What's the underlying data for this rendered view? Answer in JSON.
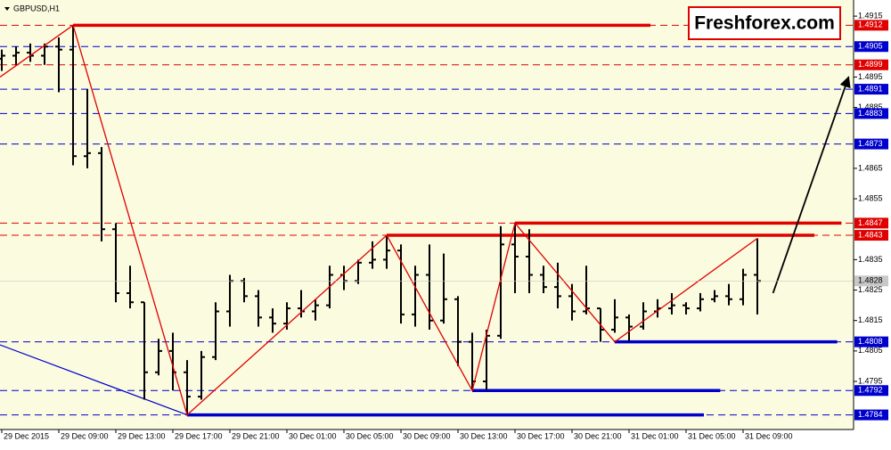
{
  "chart_data": {
    "type": "ohlc",
    "title": "GBPUSD,H1",
    "logo": "Freshforex.com",
    "background": "#fbfbdf",
    "bar_color": "#000000",
    "open": [
      1.4901,
      1.4902,
      1.4903,
      1.4902,
      1.4905,
      1.4904,
      1.4869,
      1.487,
      1.4845,
      1.4824,
      1.4821,
      1.4798,
      1.4805,
      1.4798,
      1.479,
      1.4803,
      1.4818,
      1.4828,
      1.4823,
      1.4816,
      1.4814,
      1.4819,
      1.4818,
      1.482,
      1.483,
      1.4828,
      1.4834,
      1.4835,
      1.4838,
      1.4817,
      1.483,
      1.4815,
      1.4822,
      1.4808,
      1.4795,
      1.481,
      1.484,
      1.4836,
      1.483,
      1.4826,
      1.4823,
      1.4818,
      1.4819,
      1.4812,
      1.4816,
      1.4813,
      1.4818,
      1.4819,
      1.482,
      1.4819,
      1.4822,
      1.4823,
      1.4822,
      1.483
    ],
    "high": [
      1.4904,
      1.4905,
      1.4906,
      1.4906,
      1.4908,
      1.4912,
      1.4891,
      1.4872,
      1.4847,
      1.4833,
      1.4821,
      1.4809,
      1.4811,
      1.4802,
      1.4805,
      1.4821,
      1.483,
      1.4829,
      1.4825,
      1.4819,
      1.4821,
      1.4825,
      1.4822,
      1.4833,
      1.4833,
      1.4835,
      1.4841,
      1.4843,
      1.484,
      1.4833,
      1.484,
      1.4837,
      1.4823,
      1.4811,
      1.4812,
      1.4846,
      1.4847,
      1.4845,
      1.4833,
      1.4834,
      1.4827,
      1.4833,
      1.4819,
      1.4822,
      1.4817,
      1.4821,
      1.4822,
      1.4824,
      1.4821,
      1.4824,
      1.4825,
      1.4827,
      1.4832,
      1.4842
    ],
    "low": [
      1.4897,
      1.4899,
      1.49,
      1.4899,
      1.489,
      1.4866,
      1.4865,
      1.4841,
      1.4821,
      1.4819,
      1.4789,
      1.4797,
      1.4792,
      1.4784,
      1.4789,
      1.4802,
      1.4813,
      1.4821,
      1.4813,
      1.4811,
      1.4812,
      1.4816,
      1.4815,
      1.4819,
      1.4825,
      1.4827,
      1.4832,
      1.4832,
      1.4814,
      1.4813,
      1.4812,
      1.4814,
      1.48,
      1.4792,
      1.4792,
      1.4809,
      1.4824,
      1.4824,
      1.4824,
      1.4819,
      1.4815,
      1.4817,
      1.4808,
      1.4811,
      1.4808,
      1.4812,
      1.4816,
      1.4817,
      1.4817,
      1.4818,
      1.4821,
      1.482,
      1.482,
      1.4817
    ],
    "close": [
      1.4902,
      1.4903,
      1.4902,
      1.4905,
      1.4904,
      1.4869,
      1.487,
      1.4845,
      1.4824,
      1.4821,
      1.4798,
      1.4805,
      1.4798,
      1.479,
      1.4803,
      1.4818,
      1.4828,
      1.4823,
      1.4816,
      1.4814,
      1.4819,
      1.4818,
      1.482,
      1.483,
      1.4828,
      1.4834,
      1.4835,
      1.4838,
      1.4817,
      1.483,
      1.4815,
      1.4822,
      1.4808,
      1.4795,
      1.481,
      1.484,
      1.4836,
      1.483,
      1.4826,
      1.4823,
      1.4818,
      1.4819,
      1.4812,
      1.4816,
      1.4813,
      1.4818,
      1.4819,
      1.482,
      1.4819,
      1.4822,
      1.4823,
      1.4822,
      1.483,
      1.4828
    ],
    "xlim": [
      -0.125,
      59.75
    ],
    "ylim": [
      1.47792,
      1.49203
    ],
    "xticks": [
      {
        "value": 0,
        "label": "29 Dec 2015"
      },
      {
        "value": 4,
        "label": "29 Dec 09:00"
      },
      {
        "value": 8,
        "label": "29 Dec 13:00"
      },
      {
        "value": 12,
        "label": "29 Dec 17:00"
      },
      {
        "value": 16,
        "label": "29 Dec 21:00"
      },
      {
        "value": 20,
        "label": "30 Dec 01:00"
      },
      {
        "value": 24,
        "label": "30 Dec 05:00"
      },
      {
        "value": 28,
        "label": "30 Dec 09:00"
      },
      {
        "value": 32,
        "label": "30 Dec 13:00"
      },
      {
        "value": 36,
        "label": "30 Dec 17:00"
      },
      {
        "value": 40,
        "label": "30 Dec 21:00"
      },
      {
        "value": 44,
        "label": "31 Dec 01:00"
      },
      {
        "value": 48,
        "label": "31 Dec 05:00"
      },
      {
        "value": 52,
        "label": "31 Dec 09:00"
      }
    ],
    "yticks": [
      1.4915,
      1.4895,
      1.4885,
      1.4865,
      1.4855,
      1.4835,
      1.4825,
      1.4815,
      1.4805,
      1.4795
    ],
    "levels": [
      {
        "value": 1.4912,
        "color": "#e00000"
      },
      {
        "value": 1.4905,
        "color": "#0000cc"
      },
      {
        "value": 1.4899,
        "color": "#e00000"
      },
      {
        "value": 1.4891,
        "color": "#0000cc"
      },
      {
        "value": 1.4883,
        "color": "#0000cc"
      },
      {
        "value": 1.4873,
        "color": "#0000cc"
      },
      {
        "value": 1.4847,
        "color": "#e00000"
      },
      {
        "value": 1.4843,
        "color": "#e00000"
      },
      {
        "value": 1.4808,
        "color": "#0000cc"
      },
      {
        "value": 1.4792,
        "color": "#0000cc"
      },
      {
        "value": 1.4784,
        "color": "#0000cc"
      }
    ],
    "current_price": 1.4828,
    "zigzag": {
      "color": "#e00000",
      "x": [
        -0.125,
        5,
        13,
        27,
        33,
        36,
        43,
        53
      ],
      "y": [
        1.4895,
        1.4912,
        1.4784,
        1.4843,
        1.4792,
        1.4847,
        1.4808,
        1.4842
      ]
    },
    "trendline": {
      "color": "#0000cc",
      "x": [
        -0.125,
        13
      ],
      "y": [
        1.4807,
        1.4784
      ]
    },
    "segments": [
      {
        "color": "#e00000",
        "x": [
          5,
          45.5
        ],
        "y": 1.4912
      },
      {
        "color": "#e00000",
        "x": [
          36,
          58.9
        ],
        "y": 1.4847
      },
      {
        "color": "#e00000",
        "x": [
          27,
          57
        ],
        "y": 1.4843
      },
      {
        "color": "#0000cc",
        "x": [
          43,
          58.6
        ],
        "y": 1.4808
      },
      {
        "color": "#0000cc",
        "x": [
          33,
          50.4
        ],
        "y": 1.4792
      },
      {
        "color": "#0000cc",
        "x": [
          13,
          49.25
        ],
        "y": 1.4784
      }
    ],
    "arrow": {
      "color": "#000000",
      "x": [
        54.1,
        59.4
      ],
      "y": [
        1.4824,
        1.4895
      ]
    }
  }
}
